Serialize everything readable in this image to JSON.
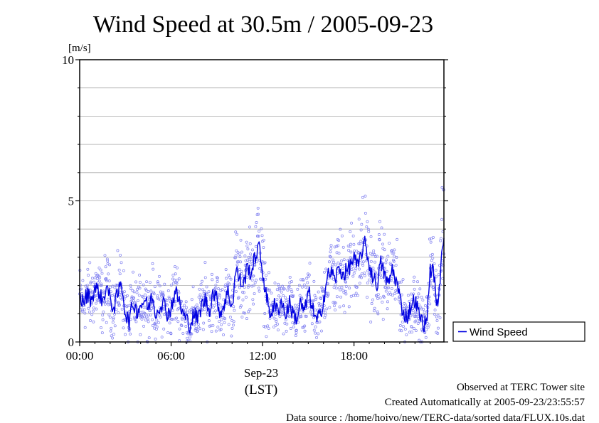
{
  "chart_data": {
    "type": "line",
    "title": "Wind Speed at 30.5m / 2005-09-23",
    "ylabel": "[m/s]",
    "ylim": [
      0,
      10
    ],
    "xlim": [
      0,
      23.9
    ],
    "x_tick_labels": [
      "00:00",
      "06:00",
      "12:00",
      "18:00"
    ],
    "x_tick_values": [
      0,
      6,
      12,
      18
    ],
    "y_tick_labels": [
      "0",
      "5",
      "10"
    ],
    "y_tick_values": [
      0,
      5,
      10
    ],
    "date_label": "Sep-23",
    "tz_label": "(LST)",
    "grid": true,
    "legend_position": "right",
    "scatter_color": "#8080f0",
    "line_color": "#0000e0",
    "series": [
      {
        "name": "Wind Speed",
        "x": [
          0.0,
          0.25,
          0.5,
          0.75,
          1.0,
          1.25,
          1.5,
          1.75,
          2.0,
          2.25,
          2.5,
          2.75,
          3.0,
          3.25,
          3.5,
          3.75,
          4.0,
          4.25,
          4.5,
          4.75,
          5.0,
          5.25,
          5.5,
          5.75,
          6.0,
          6.25,
          6.5,
          6.75,
          7.0,
          7.25,
          7.5,
          7.75,
          8.0,
          8.25,
          8.5,
          8.75,
          9.0,
          9.25,
          9.5,
          9.75,
          10.0,
          10.25,
          10.5,
          10.75,
          11.0,
          11.25,
          11.5,
          11.75,
          12.0,
          12.25,
          12.5,
          12.75,
          13.0,
          13.25,
          13.5,
          13.75,
          14.0,
          14.25,
          14.5,
          14.75,
          15.0,
          15.25,
          15.5,
          15.75,
          16.0,
          16.25,
          16.5,
          16.75,
          17.0,
          17.25,
          17.5,
          17.75,
          18.0,
          18.25,
          18.5,
          18.75,
          19.0,
          19.25,
          19.5,
          19.75,
          20.0,
          20.25,
          20.5,
          20.75,
          21.0,
          21.25,
          21.5,
          21.75,
          22.0,
          22.25,
          22.5,
          22.75,
          23.0,
          23.25,
          23.5,
          23.75,
          23.9
        ],
        "values": [
          1.6,
          1.4,
          1.7,
          1.5,
          1.9,
          1.8,
          1.4,
          2.0,
          1.5,
          1.2,
          1.7,
          2.1,
          1.0,
          0.7,
          1.4,
          1.1,
          1.3,
          1.5,
          1.2,
          1.6,
          1.0,
          1.3,
          1.4,
          1.0,
          1.2,
          1.8,
          1.5,
          1.0,
          0.8,
          0.6,
          1.0,
          0.8,
          1.3,
          1.5,
          1.1,
          1.8,
          1.5,
          1.0,
          1.4,
          1.8,
          1.2,
          2.6,
          2.2,
          2.0,
          2.7,
          2.4,
          3.0,
          3.4,
          2.5,
          1.6,
          1.0,
          1.3,
          1.1,
          1.5,
          0.9,
          1.4,
          1.0,
          0.8,
          1.4,
          1.0,
          1.8,
          1.3,
          0.7,
          0.9,
          1.5,
          2.3,
          2.5,
          2.2,
          2.6,
          2.4,
          2.5,
          2.7,
          3.0,
          2.6,
          3.2,
          3.5,
          2.7,
          2.3,
          2.0,
          2.8,
          2.4,
          2.0,
          2.6,
          2.2,
          1.6,
          1.0,
          0.9,
          1.3,
          1.5,
          1.0,
          0.7,
          0.6,
          2.6,
          2.4,
          1.0,
          3.2,
          3.8
        ]
      }
    ]
  },
  "footer": {
    "site": "Observed at TERC Tower site",
    "created": "Created Automatically at 2005-09-23/23:55:57",
    "source": "Data source : /home/hoivo/new/TERC-data/sorted  data/FLUX.10s.dat"
  }
}
